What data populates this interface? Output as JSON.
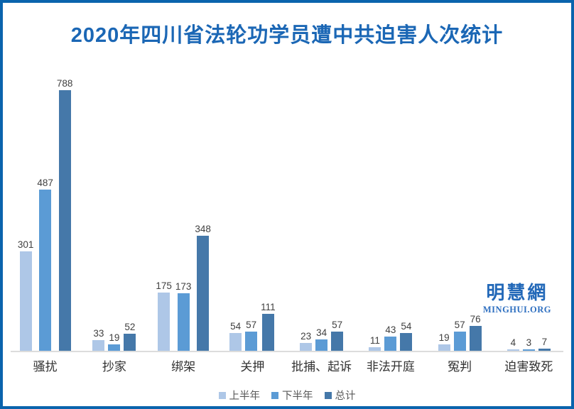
{
  "frame": {
    "border_color": "#0a64ad",
    "background": "#ffffff"
  },
  "title": "2020年四川省法轮功学员遭中共迫害人次统计",
  "title_color": "#1b67b5",
  "chart_data": {
    "type": "bar",
    "title": "2020年四川省法轮功学员遭中共迫害人次统计",
    "categories": [
      "骚扰",
      "抄家",
      "绑架",
      "关押",
      "批捕、起诉",
      "非法开庭",
      "冤判",
      "迫害致死"
    ],
    "series": [
      {
        "name": "上半年",
        "color": "#aec7e7",
        "values": [
          301,
          33,
          175,
          54,
          23,
          11,
          19,
          4
        ]
      },
      {
        "name": "下半年",
        "color": "#5b9bd5",
        "values": [
          487,
          19,
          173,
          57,
          34,
          43,
          57,
          3
        ]
      },
      {
        "name": "总计",
        "color": "#4578a9",
        "values": [
          788,
          52,
          348,
          111,
          57,
          54,
          76,
          7
        ]
      }
    ],
    "xlabel": "",
    "ylabel": "",
    "ylim": [
      0,
      788
    ],
    "grid": false,
    "y_axis_visible": false,
    "value_labels": true,
    "legend_position": "bottom",
    "value_label_color": "#404040",
    "category_label_color": "#333333",
    "baseline_color": "#dcdcdc"
  },
  "watermark": {
    "line1": "明慧網",
    "line2": "MINGHUI.ORG"
  }
}
